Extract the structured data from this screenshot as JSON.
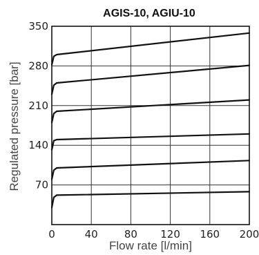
{
  "chart_data": {
    "type": "line",
    "title": "AGIS-10, AGIU-10",
    "xlabel": "Flow rate [l/min]",
    "ylabel": "Regulated pressure [bar]",
    "xlim": [
      0,
      200
    ],
    "ylim": [
      0,
      350
    ],
    "xticks": [
      "0",
      "40",
      "80",
      "120",
      "160",
      "200"
    ],
    "yticks": [
      "70",
      "140",
      "210",
      "280",
      "350"
    ],
    "grid": true,
    "series": [
      {
        "x": [
          0,
          2,
          5,
          200
        ],
        "y": [
          30,
          48,
          52,
          58
        ]
      },
      {
        "x": [
          0,
          2,
          5,
          200
        ],
        "y": [
          80,
          96,
          100,
          113
        ]
      },
      {
        "x": [
          0,
          2,
          5,
          200
        ],
        "y": [
          132,
          148,
          150,
          160
        ]
      },
      {
        "x": [
          0,
          2,
          5,
          200
        ],
        "y": [
          180,
          196,
          200,
          220
        ]
      },
      {
        "x": [
          0,
          2,
          5,
          200
        ],
        "y": [
          230,
          246,
          250,
          281
        ]
      },
      {
        "x": [
          0,
          2,
          5,
          200
        ],
        "y": [
          282,
          297,
          300,
          338
        ]
      }
    ]
  }
}
